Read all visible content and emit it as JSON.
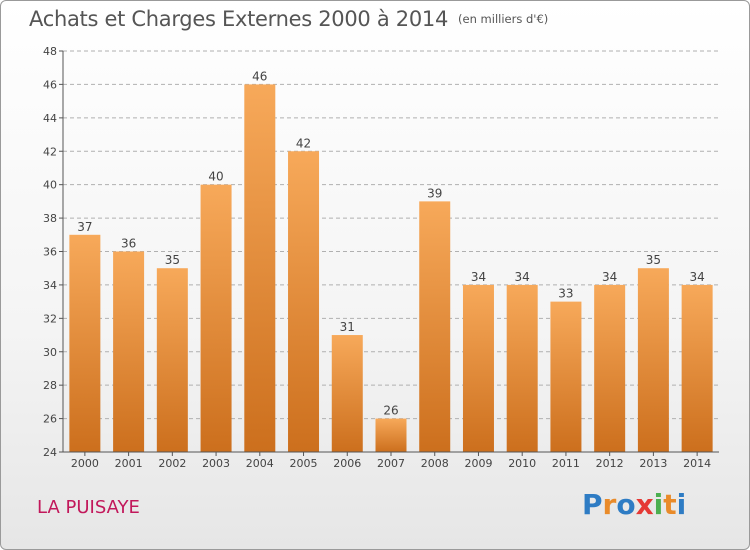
{
  "header": {
    "title": "Achats et Charges Externes 2000 à 2014",
    "unit": "(en milliers d'€)"
  },
  "commune": "LA PUISAYE",
  "logo": {
    "text": "Proxiti",
    "letter_colors": [
      "#2e7cc4",
      "#e98b2a",
      "#2e7cc4",
      "#e53935",
      "#4caf50",
      "#e98b2a",
      "#2e7cc4"
    ]
  },
  "colors": {
    "bar_light": "#f7a95a",
    "bar_dark": "#cc6f1d",
    "grid": "#b0b0b0"
  },
  "chart_data": {
    "type": "bar",
    "categories": [
      "2000",
      "2001",
      "2002",
      "2003",
      "2004",
      "2005",
      "2006",
      "2007",
      "2008",
      "2009",
      "2010",
      "2011",
      "2012",
      "2013",
      "2014"
    ],
    "values": [
      37,
      36,
      35,
      40,
      46,
      42,
      31,
      26,
      39,
      34,
      34,
      33,
      34,
      35,
      34
    ],
    "title": "Achats et Charges Externes 2000 à 2014",
    "subtitle": "(en milliers d'€)",
    "ylim": [
      24,
      48
    ],
    "yticks": [
      24,
      26,
      28,
      30,
      32,
      34,
      36,
      38,
      40,
      42,
      44,
      46,
      48
    ],
    "grid": true,
    "data_labels": true
  }
}
